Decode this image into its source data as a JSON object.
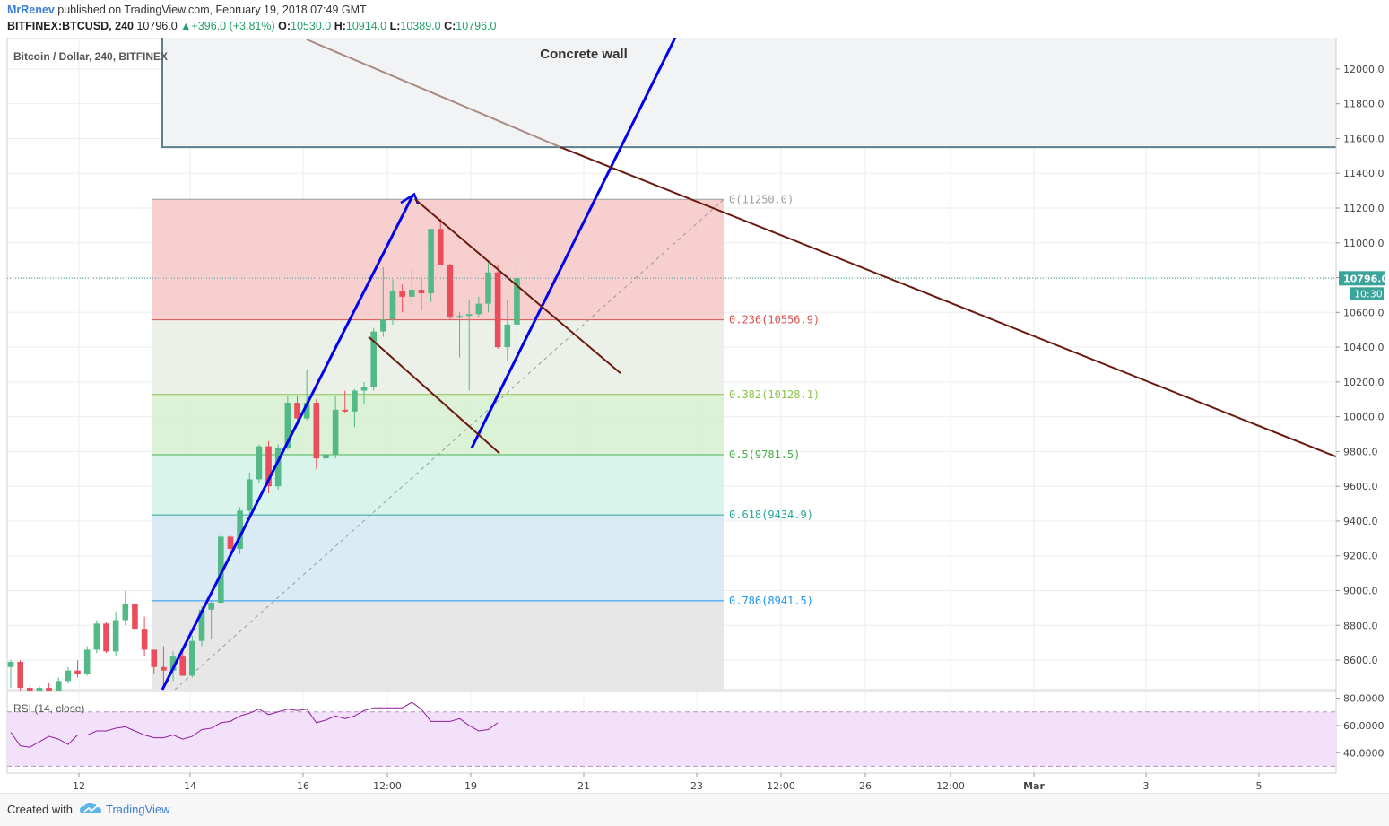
{
  "header": {
    "author": "MrRenev",
    "published": "published on TradingView.com, February 19, 2018 07:49 GMT",
    "symbol": "BITFINEX:BTCUSD, 240",
    "price": "10796.0",
    "change": "+396.0 (+3.81%)",
    "o_label": "O:",
    "o_value": "10530.0",
    "h_label": "H:",
    "h_value": "10914.0",
    "l_label": "L:",
    "l_value": "10389.0",
    "c_label": "C:",
    "c_value": "10796.0"
  },
  "footer": {
    "created_with": "Created with",
    "brand": "TradingView"
  },
  "chart_data": {
    "type": "candlestick",
    "title": "Bitcoin / Dollar, 240, BITFINEX",
    "ylim": [
      8430,
      12180
    ],
    "y_ticks": [
      "8600.0",
      "8800.0",
      "9000.0",
      "9200.0",
      "9400.0",
      "9600.0",
      "9800.0",
      "10000.0",
      "10200.0",
      "10400.0",
      "10600.0",
      "10800.0",
      "11000.0",
      "11200.0",
      "11400.0",
      "11600.0",
      "11800.0",
      "12000.0"
    ],
    "x_ticks": [
      "12",
      "14",
      "16",
      "12:00",
      "19",
      "21",
      "23",
      "12:00",
      "26",
      "12:00",
      "Mar",
      "3",
      "5"
    ],
    "last_price": "10796.0",
    "countdown": "10:30",
    "colors": {
      "up": "#53b987",
      "down": "#eb4d5c",
      "trend_blue": "#0000ee",
      "trend_brown": "#6b1a0f",
      "rsi": "#8e1f9a"
    },
    "candles": [
      [
        8560,
        8600,
        8440,
        8590
      ],
      [
        8590,
        8600,
        8400,
        8440
      ],
      [
        8440,
        8460,
        8380,
        8410
      ],
      [
        8410,
        8450,
        8400,
        8440
      ],
      [
        8440,
        8470,
        8420,
        8420
      ],
      [
        8420,
        8500,
        8400,
        8480
      ],
      [
        8480,
        8560,
        8470,
        8540
      ],
      [
        8540,
        8600,
        8500,
        8520
      ],
      [
        8520,
        8680,
        8510,
        8660
      ],
      [
        8660,
        8830,
        8640,
        8810
      ],
      [
        8810,
        8820,
        8640,
        8650
      ],
      [
        8650,
        8880,
        8620,
        8830
      ],
      [
        8830,
        9000,
        8800,
        8920
      ],
      [
        8920,
        8970,
        8760,
        8780
      ],
      [
        8780,
        8850,
        8620,
        8660
      ],
      [
        8660,
        8660,
        8520,
        8560
      ],
      [
        8560,
        8680,
        8460,
        8540
      ],
      [
        8540,
        8650,
        8480,
        8620
      ],
      [
        8620,
        8650,
        8520,
        8510
      ],
      [
        8510,
        8740,
        8500,
        8710
      ],
      [
        8710,
        8910,
        8680,
        8890
      ],
      [
        8890,
        8940,
        8720,
        8930
      ],
      [
        8930,
        9340,
        8920,
        9310
      ],
      [
        9310,
        9320,
        9200,
        9240
      ],
      [
        9240,
        9480,
        9210,
        9460
      ],
      [
        9460,
        9680,
        9440,
        9640
      ],
      [
        9640,
        9840,
        9620,
        9830
      ],
      [
        9830,
        9860,
        9560,
        9600
      ],
      [
        9600,
        9840,
        9580,
        9820
      ],
      [
        9820,
        10120,
        9810,
        10080
      ],
      [
        10080,
        10120,
        9970,
        9990
      ],
      [
        9990,
        10270,
        9980,
        10080
      ],
      [
        10080,
        10100,
        9700,
        9760
      ],
      [
        9760,
        9800,
        9680,
        9780
      ],
      [
        9780,
        10120,
        9760,
        10040
      ],
      [
        10040,
        10150,
        10020,
        10030
      ],
      [
        10030,
        10160,
        9940,
        10150
      ],
      [
        10150,
        10200,
        10070,
        10170
      ],
      [
        10170,
        10510,
        10150,
        10490
      ],
      [
        10490,
        10860,
        10460,
        10560
      ],
      [
        10560,
        10790,
        10530,
        10720
      ],
      [
        10720,
        10760,
        10600,
        10690
      ],
      [
        10690,
        10850,
        10640,
        10730
      ],
      [
        10730,
        10790,
        10610,
        10710
      ],
      [
        10710,
        11080,
        10660,
        11080
      ],
      [
        11080,
        11140,
        10870,
        10870
      ],
      [
        10870,
        10880,
        10560,
        10570
      ],
      [
        10570,
        10600,
        10340,
        10580
      ],
      [
        10580,
        10670,
        10150,
        10590
      ],
      [
        10590,
        10690,
        10570,
        10650
      ],
      [
        10650,
        10890,
        10600,
        10830
      ],
      [
        10830,
        10870,
        10390,
        10400
      ],
      [
        10400,
        10670,
        10320,
        10530
      ],
      [
        10530,
        10914,
        10389,
        10796
      ]
    ],
    "fibonacci": {
      "levels": [
        {
          "label": "0(11250.0)",
          "value": 11250.0,
          "color": "#9e9e9e"
        },
        {
          "label": "0.236(10556.9)",
          "value": 10556.9,
          "color": "#d9534f"
        },
        {
          "label": "0.382(10128.1)",
          "value": 10128.1,
          "color": "#8bc34a"
        },
        {
          "label": "0.5(9781.5)",
          "value": 9781.5,
          "color": "#4caf50"
        },
        {
          "label": "0.618(9434.9)",
          "value": 9434.9,
          "color": "#26a69a"
        },
        {
          "label": "0.786(8941.5)",
          "value": 8941.5,
          "color": "#2196f3"
        }
      ]
    },
    "annotation": "Concrete wall",
    "rsi": {
      "label": "RSI (14, close)",
      "ylim": [
        25,
        85
      ],
      "bands": [
        30,
        70
      ],
      "ticks": [
        "80.0000",
        "60.0000",
        "40.0000"
      ],
      "values": [
        55,
        45,
        44,
        48,
        52,
        50,
        46,
        53,
        53,
        56,
        56,
        58,
        59,
        56,
        53,
        51,
        51,
        53,
        50,
        52,
        57,
        58,
        62,
        63,
        67,
        69,
        72,
        68,
        70,
        72,
        71,
        72,
        62,
        64,
        67,
        65,
        67,
        71,
        73,
        73,
        73,
        73,
        77,
        72,
        63,
        63,
        63,
        65,
        60,
        56,
        57,
        62
      ]
    }
  }
}
